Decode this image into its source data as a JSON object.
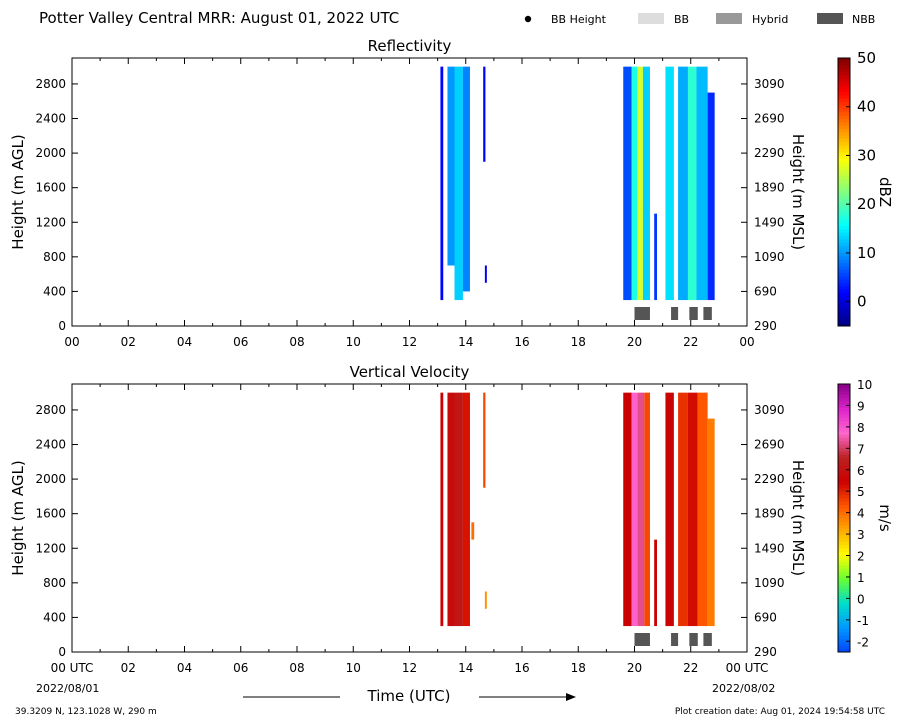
{
  "figure": {
    "title": "Potter Valley Central MRR:  August 01, 2022 UTC",
    "location": "39.3209 N, 123.1028 W, 290 m",
    "creation": "Plot creation date: Aug 01, 2024 19:54:58 UTC",
    "legend": [
      {
        "label": "BB Height",
        "kind": "dot",
        "color": "#000000"
      },
      {
        "label": "BB",
        "kind": "box",
        "color": "#dddddd"
      },
      {
        "label": "Hybrid",
        "kind": "box",
        "color": "#999999"
      },
      {
        "label": "NBB",
        "kind": "box",
        "color": "#555555"
      }
    ],
    "xlabel": "Time (UTC)",
    "start_date": "2022/08/01",
    "end_date": "2022/08/02",
    "start_tick": "00 UTC",
    "end_tick": "00 UTC"
  },
  "chart_data": [
    {
      "type": "heatmap",
      "title": "Reflectivity",
      "ylabel": "Height (m AGL)",
      "y2label": "Height (m MSL)",
      "xlim": [
        0,
        24
      ],
      "ylim": [
        0,
        3100
      ],
      "x_ticks": [
        "00",
        "02",
        "04",
        "06",
        "08",
        "10",
        "12",
        "14",
        "16",
        "18",
        "20",
        "22",
        "00"
      ],
      "y_ticks": [
        0,
        400,
        800,
        1200,
        1600,
        2000,
        2400,
        2800
      ],
      "y2_ticks": [
        290,
        690,
        1090,
        1490,
        1890,
        2290,
        2690,
        3090
      ],
      "colorbar": {
        "label": "dBZ",
        "range": [
          -5,
          50
        ],
        "ticks": [
          0,
          10,
          20,
          30,
          40,
          50
        ],
        "colors": [
          "#00007f",
          "#0000ff",
          "#0080ff",
          "#00ffff",
          "#80ff80",
          "#ffff00",
          "#ff8000",
          "#ff0000",
          "#7f0000"
        ]
      },
      "echo_columns": [
        {
          "start": 13.1,
          "end": 13.2,
          "top": 3000,
          "bottom": 300,
          "value": 2
        },
        {
          "start": 13.35,
          "end": 13.6,
          "top": 3000,
          "bottom": 700,
          "value": 10
        },
        {
          "start": 13.6,
          "end": 13.9,
          "top": 3000,
          "bottom": 300,
          "value": 13
        },
        {
          "start": 13.9,
          "end": 14.15,
          "top": 3000,
          "bottom": 400,
          "value": 9
        },
        {
          "start": 14.62,
          "end": 14.7,
          "top": 3000,
          "bottom": 1900,
          "value": 2
        },
        {
          "start": 14.68,
          "end": 14.75,
          "top": 700,
          "bottom": 500,
          "value": 1
        },
        {
          "start": 19.6,
          "end": 19.9,
          "top": 3000,
          "bottom": 300,
          "value": 6
        },
        {
          "start": 19.9,
          "end": 20.1,
          "top": 3000,
          "bottom": 300,
          "value": 17
        },
        {
          "start": 20.1,
          "end": 20.3,
          "top": 3000,
          "bottom": 300,
          "value": 27
        },
        {
          "start": 20.3,
          "end": 20.55,
          "top": 3000,
          "bottom": 300,
          "value": 13
        },
        {
          "start": 20.7,
          "end": 20.8,
          "top": 1300,
          "bottom": 300,
          "value": 5
        },
        {
          "start": 21.1,
          "end": 21.4,
          "top": 3000,
          "bottom": 300,
          "value": 14
        },
        {
          "start": 21.55,
          "end": 21.9,
          "top": 3000,
          "bottom": 300,
          "value": 11
        },
        {
          "start": 21.9,
          "end": 22.2,
          "top": 3000,
          "bottom": 300,
          "value": 18
        },
        {
          "start": 22.2,
          "end": 22.6,
          "top": 3000,
          "bottom": 300,
          "value": 12
        },
        {
          "start": 22.6,
          "end": 22.85,
          "top": 2700,
          "bottom": 300,
          "value": 4
        }
      ],
      "bright_band_markers": [
        {
          "start": 20.0,
          "end": 20.55,
          "type": "NBB"
        },
        {
          "start": 21.3,
          "end": 21.55,
          "type": "NBB"
        },
        {
          "start": 21.95,
          "end": 22.25,
          "type": "NBB"
        },
        {
          "start": 22.45,
          "end": 22.75,
          "type": "NBB"
        }
      ]
    },
    {
      "type": "heatmap",
      "title": "Vertical Velocity",
      "ylabel": "Height (m AGL)",
      "y2label": "Height (m MSL)",
      "xlim": [
        0,
        24
      ],
      "ylim": [
        0,
        3100
      ],
      "x_ticks": [
        "00",
        "02",
        "04",
        "06",
        "08",
        "10",
        "12",
        "14",
        "16",
        "18",
        "20",
        "22",
        "00"
      ],
      "y_ticks": [
        0,
        400,
        800,
        1200,
        1600,
        2000,
        2400,
        2800
      ],
      "y2_ticks": [
        290,
        690,
        1090,
        1490,
        1890,
        2290,
        2690,
        3090
      ],
      "colorbar": {
        "label": "m/s",
        "range": [
          -2.5,
          10
        ],
        "ticks": [
          -2,
          -1,
          0,
          1,
          2,
          3,
          4,
          5,
          6,
          7,
          8,
          9,
          10
        ],
        "colors": [
          "#0044ff",
          "#0099ff",
          "#00ddcc",
          "#66ff33",
          "#ffff00",
          "#ffaa00",
          "#ff5500",
          "#cc0000",
          "#bb2222",
          "#ff66cc",
          "#dd22cc",
          "#880088"
        ]
      },
      "echo_columns": [
        {
          "start": 13.1,
          "end": 13.2,
          "top": 3000,
          "bottom": 300,
          "value": 5.5
        },
        {
          "start": 13.35,
          "end": 13.6,
          "top": 3000,
          "bottom": 300,
          "value": 5.8
        },
        {
          "start": 13.6,
          "end": 13.9,
          "top": 3000,
          "bottom": 300,
          "value": 6.2
        },
        {
          "start": 13.9,
          "end": 14.15,
          "top": 3000,
          "bottom": 300,
          "value": 5.2
        },
        {
          "start": 14.2,
          "end": 14.3,
          "top": 1500,
          "bottom": 1300,
          "value": 4
        },
        {
          "start": 14.62,
          "end": 14.7,
          "top": 3000,
          "bottom": 1900,
          "value": 4.5
        },
        {
          "start": 14.68,
          "end": 14.75,
          "top": 700,
          "bottom": 500,
          "value": 3.5
        },
        {
          "start": 19.6,
          "end": 19.9,
          "top": 3000,
          "bottom": 300,
          "value": 5.5
        },
        {
          "start": 19.9,
          "end": 20.1,
          "top": 3000,
          "bottom": 300,
          "value": 7.8
        },
        {
          "start": 20.1,
          "end": 20.35,
          "top": 3000,
          "bottom": 300,
          "value": 7.3
        },
        {
          "start": 20.35,
          "end": 20.55,
          "top": 3000,
          "bottom": 300,
          "value": 4.5
        },
        {
          "start": 20.7,
          "end": 20.8,
          "top": 1300,
          "bottom": 300,
          "value": 5.5
        },
        {
          "start": 21.1,
          "end": 21.4,
          "top": 3000,
          "bottom": 300,
          "value": 5.6
        },
        {
          "start": 21.55,
          "end": 21.9,
          "top": 3000,
          "bottom": 300,
          "value": 4.8
        },
        {
          "start": 21.9,
          "end": 22.25,
          "top": 3000,
          "bottom": 300,
          "value": 5.3
        },
        {
          "start": 22.25,
          "end": 22.6,
          "top": 3000,
          "bottom": 300,
          "value": 4.3
        },
        {
          "start": 22.6,
          "end": 22.85,
          "top": 2700,
          "bottom": 300,
          "value": 3.8
        }
      ],
      "bright_band_markers": [
        {
          "start": 20.0,
          "end": 20.55,
          "type": "NBB"
        },
        {
          "start": 21.3,
          "end": 21.55,
          "type": "NBB"
        },
        {
          "start": 21.95,
          "end": 22.25,
          "type": "NBB"
        },
        {
          "start": 22.45,
          "end": 22.75,
          "type": "NBB"
        }
      ]
    }
  ]
}
